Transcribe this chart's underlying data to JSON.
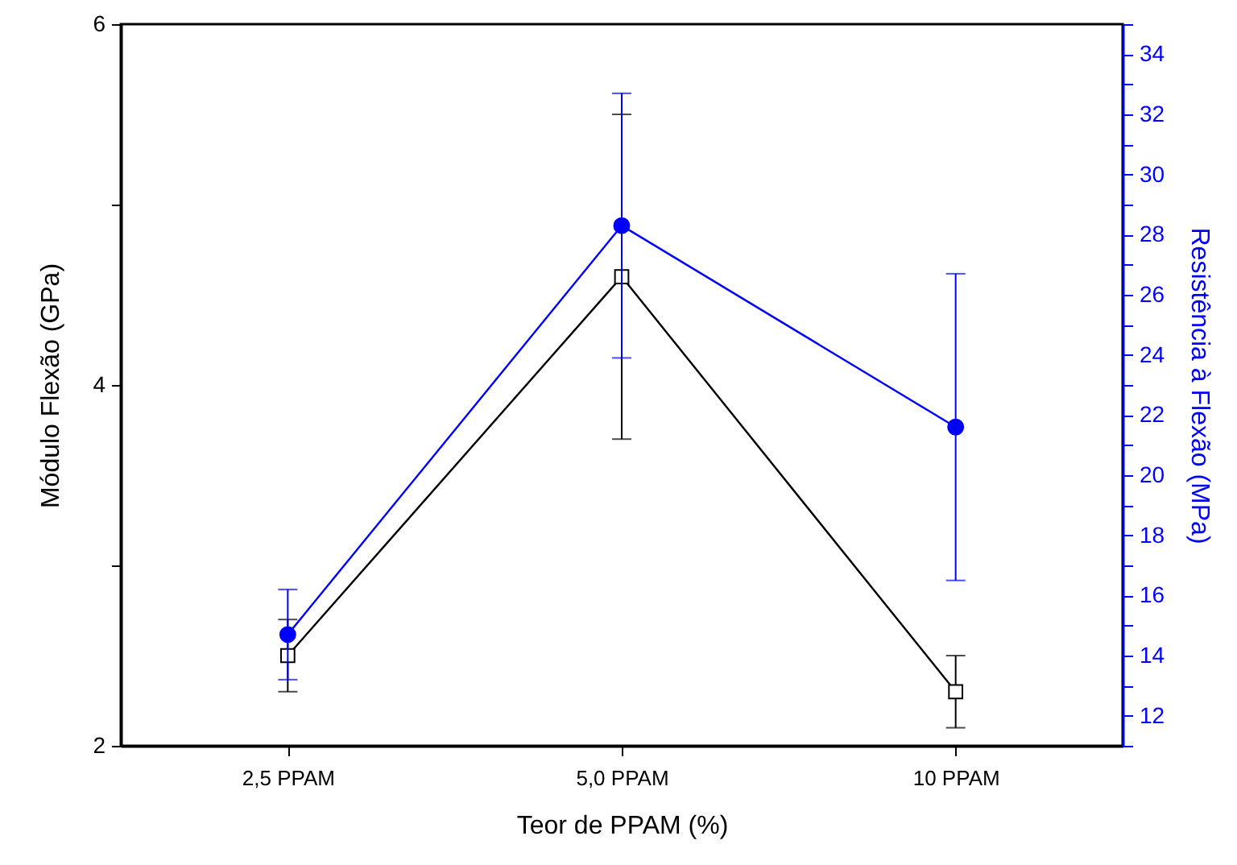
{
  "chart_data": {
    "type": "line",
    "xlabel": "Teor de PPAM (%)",
    "ylabel": "Módulo Flexão (GPa)",
    "y2label": "Resistência à Flexão (MPa)",
    "categories": [
      "2,5 PPAM",
      "5,0 PPAM",
      "10 PPAM"
    ],
    "series": [
      {
        "color": "#000000",
        "marker": "square",
        "values": [
          2.5,
          4.6,
          2.3
        ],
        "errors": [
          0.2,
          0.9,
          0.2
        ]
      },
      {
        "color": "#0000ff",
        "marker": "circle",
        "axis": "y2",
        "values": [
          14.7,
          28.3,
          21.6
        ],
        "errors": [
          1.5,
          4.4,
          5.1
        ]
      }
    ],
    "ylim": [
      2,
      6
    ],
    "yticks": [
      2,
      {
        "value": 3,
        "label": null
      },
      4,
      {
        "value": 5,
        "label": null
      },
      6
    ],
    "y2lim": [
      11,
      35
    ],
    "y2ticks": [
      {
        "value": 11,
        "label": null
      },
      12,
      {
        "value": 13,
        "label": null
      },
      14,
      {
        "value": 15,
        "label": null
      },
      16,
      {
        "value": 17,
        "label": null
      },
      18,
      {
        "value": 19,
        "label": null
      },
      20,
      {
        "value": 21,
        "label": null
      },
      22,
      {
        "value": 23,
        "label": null
      },
      24,
      {
        "value": 25,
        "label": null
      },
      26,
      {
        "value": 27,
        "label": null
      },
      28,
      {
        "value": 29,
        "label": null
      },
      30,
      {
        "value": 31,
        "label": null
      },
      32,
      {
        "value": 33,
        "label": null
      },
      34,
      {
        "value": 35,
        "label": null
      }
    ],
    "grid": false
  }
}
